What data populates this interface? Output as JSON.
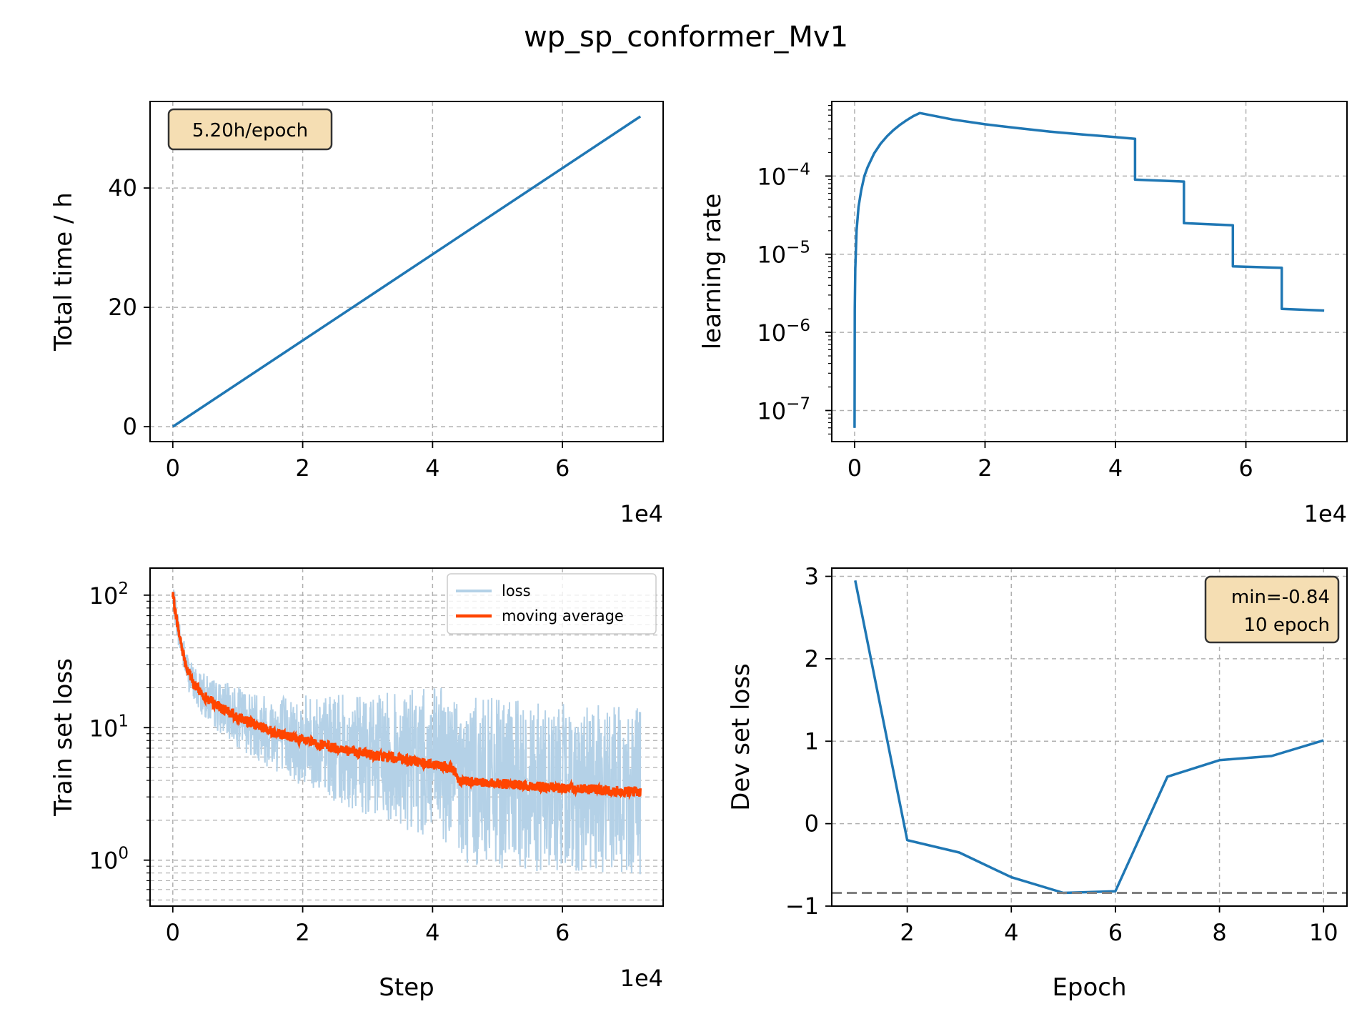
{
  "title": "wp_sp_conformer_Mv1",
  "colors": {
    "line": "#1f77b4",
    "loss_raw": "#b4d1e7",
    "moving_avg": "#ff4500",
    "box_fill": "#f5deb3",
    "grid": "#b0b0b0",
    "min_line": "#808080"
  },
  "chart_data": [
    {
      "type": "line",
      "xlabel": "",
      "ylabel": "Total time / h",
      "x_offset_label": "1e4",
      "xlim": [
        -0.35,
        7.55
      ],
      "ylim": [
        -2.5,
        54.5
      ],
      "xticks": [
        0,
        2,
        4,
        6
      ],
      "xtick_labels": [
        "0",
        "2",
        "4",
        "6"
      ],
      "yticks": [
        0,
        20,
        40
      ],
      "ytick_labels": [
        "0",
        "20",
        "40"
      ],
      "annotation": "5.20h/epoch",
      "series": [
        {
          "x": [
            0,
            7.2
          ],
          "y": [
            0,
            52
          ]
        }
      ],
      "grid": true
    },
    {
      "type": "line",
      "xlabel": "",
      "ylabel": "learning rate",
      "yscale": "log",
      "x_offset_label": "1e4",
      "xlim": [
        -0.35,
        7.55
      ],
      "ylim": [
        4e-08,
        0.0009
      ],
      "xticks": [
        0,
        2,
        4,
        6
      ],
      "xtick_labels": [
        "0",
        "2",
        "4",
        "6"
      ],
      "yticks": [
        1e-07,
        1e-06,
        1e-05,
        0.0001
      ],
      "ytick_labels": [
        [
          "10",
          "−7"
        ],
        [
          "10",
          "−6"
        ],
        [
          "10",
          "−5"
        ],
        [
          "10",
          "−4"
        ]
      ],
      "series": [
        {
          "x": [
            0,
            0.003,
            0.01,
            0.03,
            0.06,
            0.1,
            0.15,
            0.2,
            0.3,
            0.4,
            0.5,
            0.6,
            0.7,
            0.8,
            0.9,
            1.0,
            1.5,
            2,
            2.5,
            3,
            3.5,
            4,
            4.3,
            4.3,
            5.05,
            5.05,
            5.8,
            5.8,
            6.55,
            6.55,
            7.2
          ],
          "y": [
            6e-08,
            2e-06,
            6.5e-06,
            2e-05,
            4e-05,
            6.5e-05,
            0.0001,
            0.00013,
            0.000195,
            0.00026,
            0.000325,
            0.00039,
            0.000455,
            0.00052,
            0.000585,
            0.00064,
            0.00053,
            0.00046,
            0.00041,
            0.00037,
            0.00034,
            0.000315,
            0.0003,
            9e-05,
            8.5e-05,
            2.5e-05,
            2.35e-05,
            7e-06,
            6.7e-06,
            2e-06,
            1.9e-06
          ]
        }
      ],
      "grid": true
    },
    {
      "type": "line",
      "xlabel": "Step",
      "ylabel": "Train set loss",
      "yscale": "log",
      "x_offset_label": "1e4",
      "xlim": [
        -0.35,
        7.55
      ],
      "ylim": [
        0.45,
        160
      ],
      "xticks": [
        0,
        2,
        4,
        6
      ],
      "xtick_labels": [
        "0",
        "2",
        "4",
        "6"
      ],
      "yticks": [
        1,
        10,
        100
      ],
      "ytick_labels": [
        [
          "10",
          "0"
        ],
        [
          "10",
          "1"
        ],
        [
          "10",
          "2"
        ]
      ],
      "legend": {
        "position": "top-right",
        "entries": [
          "loss",
          "moving average"
        ]
      },
      "series": [
        {
          "name": "loss",
          "x": [
            0,
            0.05,
            0.1,
            0.2,
            0.3,
            0.5,
            0.75,
            1,
            1.5,
            2,
            2.5,
            3,
            3.5,
            4,
            4.3,
            4.4,
            5,
            5.5,
            6,
            6.5,
            7,
            7.2
          ],
          "y": [
            100,
            70,
            50,
            30,
            22,
            17,
            14,
            12,
            9.5,
            8,
            7,
            6.3,
            5.8,
            5.3,
            5,
            4,
            3.8,
            3.6,
            3.5,
            3.4,
            3.3,
            3.3
          ]
        },
        {
          "name": "moving average",
          "x": [
            0,
            0.05,
            0.1,
            0.2,
            0.3,
            0.5,
            0.75,
            1,
            1.5,
            2,
            2.5,
            3,
            3.5,
            4,
            4.3,
            4.4,
            5,
            5.5,
            6,
            6.5,
            7,
            7.2
          ],
          "y": [
            100,
            70,
            50,
            30,
            22,
            17,
            14,
            12,
            9.5,
            8,
            7,
            6.3,
            5.8,
            5.3,
            5,
            4,
            3.8,
            3.6,
            3.5,
            3.4,
            3.3,
            3.3
          ]
        }
      ],
      "grid": true
    },
    {
      "type": "line",
      "xlabel": "Epoch",
      "ylabel": "Dev set loss",
      "xlim": [
        0.55,
        10.45
      ],
      "ylim": [
        -1.0,
        3.1
      ],
      "xticks": [
        2,
        4,
        6,
        8,
        10
      ],
      "xtick_labels": [
        "2",
        "4",
        "6",
        "8",
        "10"
      ],
      "yticks": [
        -1,
        0,
        1,
        2,
        3
      ],
      "ytick_labels": [
        "−1",
        "0",
        "1",
        "2",
        "3"
      ],
      "annotation": [
        "min=-0.84",
        "10 epoch"
      ],
      "min_line": -0.84,
      "series": [
        {
          "x": [
            1,
            2,
            3,
            4,
            5,
            6,
            7,
            8,
            9,
            10
          ],
          "y": [
            2.95,
            -0.2,
            -0.35,
            -0.65,
            -0.84,
            -0.82,
            0.57,
            0.77,
            0.82,
            1.01
          ]
        }
      ],
      "grid": true
    }
  ]
}
